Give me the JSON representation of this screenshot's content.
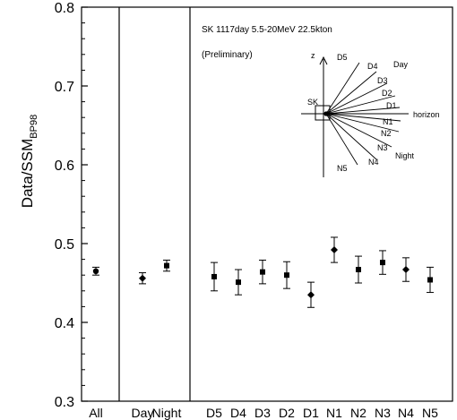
{
  "chart_data": {
    "type": "scatter",
    "ylabel": "Data/SSM",
    "ylabel_subscript": "BP98",
    "ylim": [
      0.3,
      0.8
    ],
    "yticks": [
      "0.3",
      "0.4",
      "0.5",
      "0.6",
      "0.7",
      "0.8"
    ],
    "ytick_values": [
      0.3,
      0.4,
      0.5,
      0.6,
      0.7,
      0.8
    ],
    "grid": false,
    "annotations": [
      "SK  1117day  5.5-20MeV  22.5kton",
      "(Preliminary)"
    ],
    "categories": [
      "All",
      "Day",
      "Night",
      "D5",
      "D4",
      "D3",
      "D2",
      "D1",
      "N1",
      "N2",
      "N3",
      "N4",
      "N5"
    ],
    "points": [
      {
        "label": "All",
        "value": 0.465,
        "err": 0.005,
        "marker": "circle"
      },
      {
        "label": "Day",
        "value": 0.456,
        "err": 0.007,
        "marker": "diamond"
      },
      {
        "label": "Night",
        "value": 0.472,
        "err": 0.007,
        "marker": "square"
      },
      {
        "label": "D5",
        "value": 0.458,
        "err": 0.018,
        "marker": "square"
      },
      {
        "label": "D4",
        "value": 0.451,
        "err": 0.016,
        "marker": "square"
      },
      {
        "label": "D3",
        "value": 0.464,
        "err": 0.015,
        "marker": "square"
      },
      {
        "label": "D2",
        "value": 0.46,
        "err": 0.017,
        "marker": "square"
      },
      {
        "label": "D1",
        "value": 0.435,
        "err": 0.016,
        "marker": "diamond"
      },
      {
        "label": "N1",
        "value": 0.492,
        "err": 0.016,
        "marker": "diamond"
      },
      {
        "label": "N2",
        "value": 0.467,
        "err": 0.017,
        "marker": "square"
      },
      {
        "label": "N3",
        "value": 0.476,
        "err": 0.015,
        "marker": "square"
      },
      {
        "label": "N4",
        "value": 0.467,
        "err": 0.015,
        "marker": "diamond"
      },
      {
        "label": "N5",
        "value": 0.454,
        "err": 0.016,
        "marker": "square"
      }
    ],
    "inset": {
      "axis_label": "z",
      "detector_label": "SK",
      "horizon_label": "horizon",
      "day_label": "Day",
      "night_label": "Night",
      "day_zones": [
        "D5",
        "D4",
        "D3",
        "D2",
        "D1"
      ],
      "night_zones": [
        "N1",
        "N2",
        "N3",
        "N4",
        "N5"
      ]
    }
  }
}
